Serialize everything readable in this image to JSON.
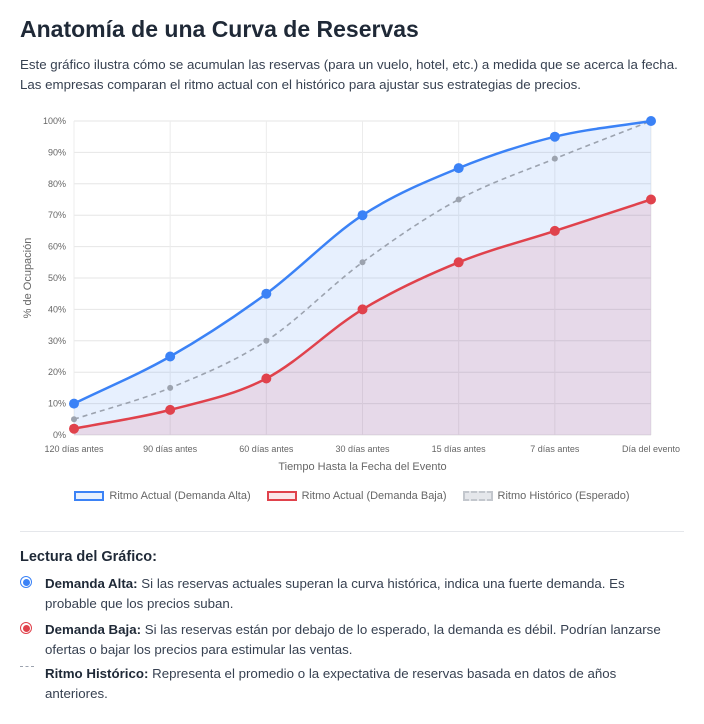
{
  "header": {
    "title": "Anatomía de una Curva de Reservas",
    "subtitle": "Este gráfico ilustra cómo se acumulan las reservas (para un vuelo, hotel, etc.) a medida que se acerca la fecha. Las empresas comparan el ritmo actual con el histórico para ajustar sus estrategias de precios."
  },
  "chart_data": {
    "type": "line",
    "categories": [
      "120 días antes",
      "90 días antes",
      "60 días antes",
      "30 días antes",
      "15 días antes",
      "7 días antes",
      "Día del evento"
    ],
    "series": [
      {
        "name": "Ritmo Actual (Demanda Alta)",
        "values": [
          10,
          25,
          45,
          70,
          85,
          95,
          100
        ],
        "color": "#3b82f6",
        "style": "solid",
        "fill": "rgba(59,130,246,0.12)"
      },
      {
        "name": "Ritmo Actual (Demanda Baja)",
        "values": [
          2,
          8,
          18,
          40,
          55,
          65,
          75
        ],
        "color": "#e0424c",
        "style": "solid",
        "fill": "rgba(220,60,80,0.12)"
      },
      {
        "name": "Ritmo Histórico (Esperado)",
        "values": [
          5,
          15,
          30,
          55,
          75,
          88,
          100
        ],
        "color": "#9ca3af",
        "style": "dashed"
      }
    ],
    "xlabel": "Tiempo Hasta la Fecha del Evento",
    "ylabel": "% de Ocupación",
    "ylim": [
      0,
      100
    ],
    "yticks": [
      "0%",
      "10%",
      "20%",
      "30%",
      "40%",
      "50%",
      "60%",
      "70%",
      "80%",
      "90%",
      "100%"
    ],
    "grid": true,
    "legend_position": "bottom"
  },
  "legend": {
    "high": "Ritmo Actual (Demanda Alta)",
    "low": "Ritmo Actual (Demanda Baja)",
    "hist": "Ritmo Histórico (Esperado)"
  },
  "reading": {
    "title": "Lectura del Gráfico:",
    "items": [
      {
        "label": "Demanda Alta:",
        "text": " Si las reservas actuales superan la curva histórica, indica una fuerte demanda. Es probable que los precios suban."
      },
      {
        "label": "Demanda Baja:",
        "text": " Si las reservas están por debajo de lo esperado, la demanda es débil. Podrían lanzarse ofertas o bajar los precios para estimular las ventas."
      },
      {
        "label": "Ritmo Histórico:",
        "text": " Representa el promedio o la expectativa de reservas basada en datos de años anteriores."
      }
    ]
  }
}
